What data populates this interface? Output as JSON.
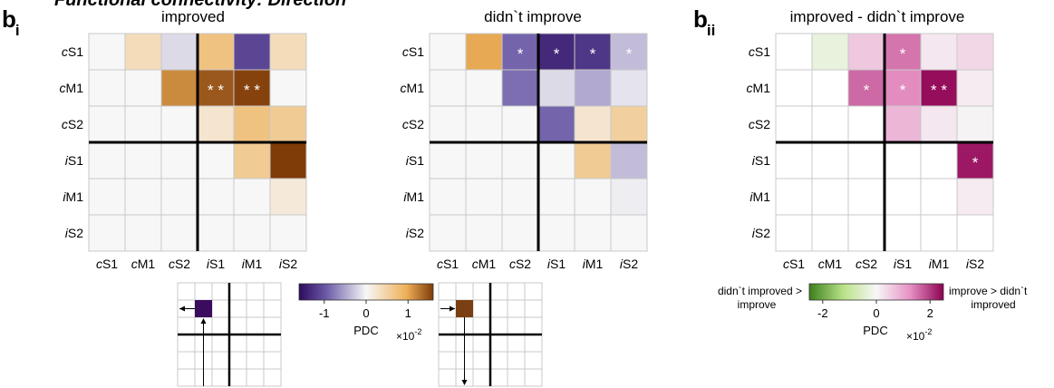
{
  "figure": {
    "top_text": "Functional connectivity: Direction",
    "panel_b": "b",
    "sub_i": "i",
    "sub_ii": "ii"
  },
  "labels": {
    "rows": [
      [
        "c",
        "S1"
      ],
      [
        "c",
        "M1"
      ],
      [
        "c",
        "S2"
      ],
      [
        "i",
        "S1"
      ],
      [
        "i",
        "M1"
      ],
      [
        "i",
        "S2"
      ]
    ],
    "cols": [
      [
        "c",
        "S1"
      ],
      [
        "c",
        "M1"
      ],
      [
        "c",
        "S2"
      ],
      [
        "i",
        "S1"
      ],
      [
        "i",
        "M1"
      ],
      [
        "i",
        "S2"
      ]
    ]
  },
  "colors": {
    "diverging_low": "#2d0a5e",
    "diverging_mid": "#f7f7f7",
    "diverging_high": "#7f3b08",
    "diff_low": "#4d9221",
    "diff_mid": "#f7f7f7",
    "diff_high": "#8e0152",
    "grid": "#bdbdbd",
    "star": "#ffffff"
  },
  "chart_data": [
    {
      "type": "heatmap",
      "title": "improved",
      "scale": "PDC ×10^-2",
      "vrange": [
        -1.6,
        1.6
      ],
      "values": [
        [
          0,
          0.3,
          -0.15,
          0.6,
          -1.0,
          0.3
        ],
        [
          0,
          0,
          1.05,
          1.4,
          1.55,
          0
        ],
        [
          0,
          0,
          0,
          0.2,
          0.6,
          0.5
        ],
        [
          0,
          0,
          0,
          0,
          0.5,
          1.6
        ],
        [
          0,
          0,
          0,
          0,
          0,
          0.15
        ],
        [
          0,
          0,
          0,
          0,
          0,
          0
        ]
      ],
      "stars": [
        [
          0,
          0,
          0,
          0,
          0,
          0
        ],
        [
          0,
          0,
          0,
          2,
          2,
          0
        ],
        [
          0,
          0,
          0,
          0,
          0,
          0
        ],
        [
          0,
          0,
          0,
          0,
          0,
          0
        ],
        [
          0,
          0,
          0,
          0,
          0,
          0
        ],
        [
          0,
          0,
          0,
          0,
          0,
          0
        ]
      ]
    },
    {
      "type": "heatmap",
      "title": "didn`t improve",
      "scale": "PDC ×10^-2",
      "vrange": [
        -1.6,
        1.6
      ],
      "values": [
        [
          0,
          0.85,
          -0.75,
          -1.3,
          -1.15,
          -0.3
        ],
        [
          0,
          0,
          -0.7,
          -0.15,
          -0.4,
          -0.1
        ],
        [
          0,
          0,
          0,
          -0.75,
          0.2,
          0.45
        ],
        [
          0,
          0,
          0,
          0,
          0.5,
          -0.3
        ],
        [
          0,
          0,
          0,
          0,
          0,
          -0.05
        ],
        [
          0,
          0,
          0,
          0,
          0,
          0
        ]
      ],
      "stars": [
        [
          0,
          0,
          1,
          1,
          1,
          1
        ],
        [
          0,
          0,
          0,
          0,
          0,
          0
        ],
        [
          0,
          0,
          0,
          0,
          0,
          0
        ],
        [
          0,
          0,
          0,
          0,
          0,
          0
        ],
        [
          0,
          0,
          0,
          0,
          0,
          0
        ],
        [
          0,
          0,
          0,
          0,
          0,
          0
        ]
      ]
    },
    {
      "type": "heatmap",
      "title": "improved - didn`t improve",
      "scale": "PDC ×10^-2",
      "vrange": [
        -2.5,
        2.5
      ],
      "values": [
        [
          0,
          -0.3,
          0.6,
          1.5,
          0.2,
          0.4
        ],
        [
          0,
          0,
          1.6,
          1.3,
          2.4,
          0.15
        ],
        [
          0,
          0,
          0,
          0.8,
          0.2,
          0.05
        ],
        [
          0,
          0,
          0,
          0,
          0,
          2.3
        ],
        [
          0,
          0,
          0,
          0,
          0,
          0.15
        ],
        [
          0,
          0,
          0,
          0,
          0,
          0
        ]
      ],
      "stars": [
        [
          0,
          0,
          0,
          1,
          0,
          0
        ],
        [
          0,
          0,
          1,
          1,
          2,
          0
        ],
        [
          0,
          0,
          0,
          0,
          0,
          0
        ],
        [
          0,
          0,
          0,
          0,
          0,
          1
        ],
        [
          0,
          0,
          0,
          0,
          0,
          0
        ],
        [
          0,
          0,
          0,
          0,
          0,
          0
        ]
      ]
    }
  ],
  "colorbar1": {
    "label": "PDC",
    "multiplier": "×10",
    "exponent": "-2",
    "ticks": [
      {
        "v": -1,
        "t": "-1"
      },
      {
        "v": 0,
        "t": "0"
      },
      {
        "v": 1,
        "t": "1"
      }
    ],
    "range": [
      -1.6,
      1.6
    ]
  },
  "colorbar2": {
    "label": "PDC",
    "multiplier": "×10",
    "exponent": "-2",
    "ticks": [
      {
        "v": -2,
        "t": "-2"
      },
      {
        "v": 0,
        "t": "0"
      },
      {
        "v": 2,
        "t": "2"
      }
    ],
    "range": [
      -2.5,
      2.5
    ],
    "left_text_1": "didn`t improved >",
    "left_text_2": "improve",
    "right_text_1": "improve > didn`t",
    "right_text_2": "improved"
  },
  "schematic": {
    "left_color": "#3b0b5e",
    "right_color": "#7a3f12"
  }
}
